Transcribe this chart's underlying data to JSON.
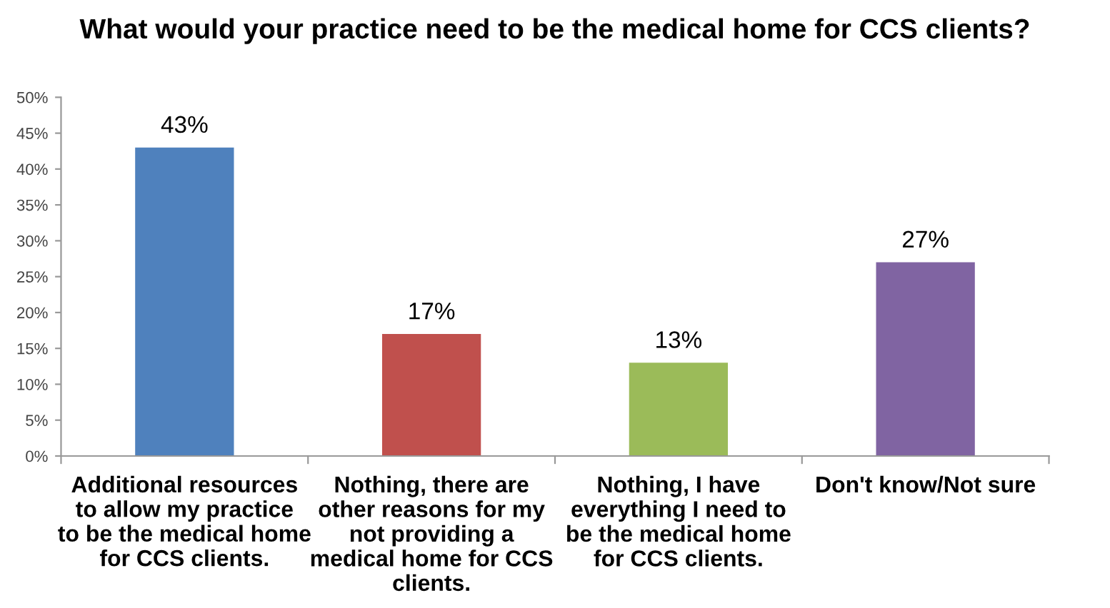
{
  "chart_data": {
    "type": "bar",
    "title": "What would your practice need to be the medical home for CCS clients?",
    "categories": [
      "Additional resources to allow my practice to be the medical home for CCS clients.",
      "Nothing, there are other reasons for my not providing a medical home for CCS clients.",
      "Nothing, I have everything I need to be the medical home for CCS clients.",
      "Don't know/Not sure"
    ],
    "values": [
      43,
      17,
      13,
      27
    ],
    "colors": [
      "#4f81bd",
      "#c0504d",
      "#9bbb59",
      "#8064a2"
    ],
    "value_labels": [
      "43%",
      "17%",
      "13%",
      "27%"
    ],
    "ylim": [
      0,
      50
    ],
    "yticks": [
      {
        "value": 0,
        "label": "0%"
      },
      {
        "value": 5,
        "label": "5%"
      },
      {
        "value": 10,
        "label": "10%"
      },
      {
        "value": 15,
        "label": "15%"
      },
      {
        "value": 20,
        "label": "20%"
      },
      {
        "value": 25,
        "label": "25%"
      },
      {
        "value": 30,
        "label": "30%"
      },
      {
        "value": 35,
        "label": "35%"
      },
      {
        "value": 40,
        "label": "40%"
      },
      {
        "value": 45,
        "label": "45%"
      },
      {
        "value": 50,
        "label": "50%"
      }
    ],
    "grid": false,
    "legend": false
  }
}
